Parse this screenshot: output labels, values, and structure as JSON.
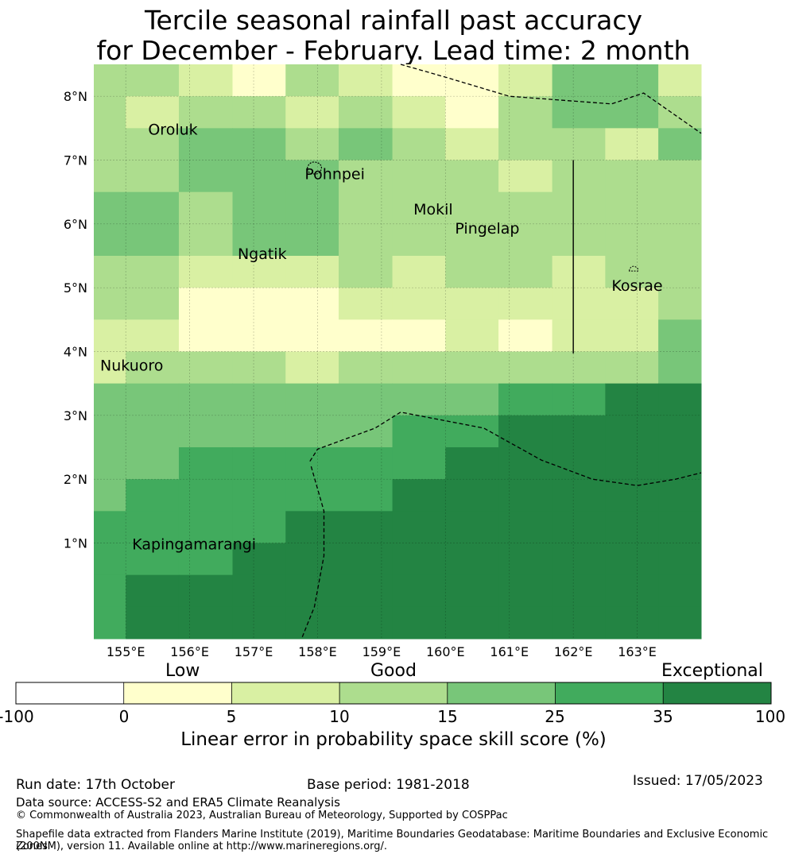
{
  "title": {
    "line1": "Tercile seasonal rainfall past accuracy",
    "line2": "for December - February. Lead time: 2 month"
  },
  "chart_data": {
    "type": "heatmap",
    "description_metric": "Linear error in probability space skill score (%)",
    "lon_edges": [
      154.5,
      155.0,
      155.83,
      156.67,
      157.5,
      158.33,
      159.17,
      160.0,
      160.83,
      161.67,
      162.5,
      163.33,
      164.0
    ],
    "lat_edges": [
      8.5,
      8.0,
      7.5,
      7.0,
      6.5,
      5.5,
      5.0,
      4.5,
      4.0,
      3.5,
      3.0,
      2.5,
      2.0,
      1.5,
      1.0,
      0.5,
      0.0,
      -0.5
    ],
    "class_grid": [
      [
        3,
        3,
        2,
        1,
        3,
        2,
        1,
        1,
        2,
        4,
        4,
        2
      ],
      [
        3,
        2,
        3,
        3,
        2,
        3,
        2,
        1,
        3,
        4,
        4,
        3
      ],
      [
        3,
        3,
        4,
        4,
        3,
        4,
        3,
        2,
        3,
        3,
        2,
        4
      ],
      [
        3,
        3,
        4,
        4,
        4,
        3,
        3,
        3,
        2,
        3,
        3,
        3
      ],
      [
        4,
        4,
        3,
        4,
        4,
        3,
        3,
        3,
        3,
        3,
        3,
        3
      ],
      [
        3,
        3,
        2,
        2,
        2,
        3,
        2,
        3,
        3,
        2,
        3,
        3
      ],
      [
        3,
        3,
        1,
        1,
        1,
        2,
        2,
        2,
        2,
        2,
        2,
        3
      ],
      [
        2,
        2,
        1,
        1,
        1,
        1,
        1,
        2,
        1,
        2,
        2,
        4
      ],
      [
        2,
        3,
        3,
        3,
        2,
        3,
        3,
        3,
        3,
        3,
        3,
        4
      ],
      [
        4,
        4,
        4,
        4,
        4,
        4,
        4,
        4,
        5,
        5,
        6,
        6
      ],
      [
        4,
        4,
        4,
        4,
        4,
        4,
        5,
        5,
        6,
        6,
        6,
        6
      ],
      [
        4,
        4,
        5,
        5,
        5,
        5,
        5,
        6,
        6,
        6,
        6,
        6
      ],
      [
        4,
        5,
        5,
        5,
        5,
        5,
        6,
        6,
        6,
        6,
        6,
        6
      ],
      [
        5,
        5,
        5,
        5,
        6,
        6,
        6,
        6,
        6,
        6,
        6,
        6
      ],
      [
        5,
        5,
        5,
        6,
        6,
        6,
        6,
        6,
        6,
        6,
        6,
        6
      ],
      [
        5,
        6,
        6,
        6,
        6,
        6,
        6,
        6,
        6,
        6,
        6,
        6
      ],
      [
        5,
        6,
        6,
        6,
        6,
        6,
        6,
        6,
        6,
        6,
        6,
        6
      ]
    ],
    "x_ticks": [
      {
        "value": 155,
        "label": "155°E"
      },
      {
        "value": 156,
        "label": "156°E"
      },
      {
        "value": 157,
        "label": "157°E"
      },
      {
        "value": 158,
        "label": "158°E"
      },
      {
        "value": 159,
        "label": "159°E"
      },
      {
        "value": 160,
        "label": "160°E"
      },
      {
        "value": 161,
        "label": "161°E"
      },
      {
        "value": 162,
        "label": "162°E"
      },
      {
        "value": 163,
        "label": "163°E"
      }
    ],
    "y_ticks": [
      {
        "value": 8,
        "label": "8°N"
      },
      {
        "value": 7,
        "label": "7°N"
      },
      {
        "value": 6,
        "label": "6°N"
      },
      {
        "value": 5,
        "label": "5°N"
      },
      {
        "value": 4,
        "label": "4°N"
      },
      {
        "value": 3,
        "label": "3°N"
      },
      {
        "value": 2,
        "label": "2°N"
      },
      {
        "value": 1,
        "label": "1°N"
      }
    ],
    "places": [
      {
        "name": "Oroluk",
        "lon": 155.35,
        "lat": 7.4
      },
      {
        "name": "Pohnpei",
        "lon": 157.8,
        "lat": 6.7
      },
      {
        "name": "Mokil",
        "lon": 159.5,
        "lat": 6.15
      },
      {
        "name": "Pingelap",
        "lon": 160.15,
        "lat": 5.85
      },
      {
        "name": "Ngatik",
        "lon": 156.75,
        "lat": 5.45
      },
      {
        "name": "Kosrae",
        "lon": 162.6,
        "lat": 4.95
      },
      {
        "name": "Nukuoro",
        "lon": 154.6,
        "lat": 3.7
      },
      {
        "name": "Kapingamarangi",
        "lon": 155.1,
        "lat": 0.9
      }
    ],
    "eez_boundary_lines": [
      [
        [
          159.3,
          8.5
        ],
        [
          160.0,
          8.3
        ],
        [
          161.0,
          8.0
        ],
        [
          162.6,
          7.88
        ],
        [
          163.1,
          8.05
        ],
        [
          164.0,
          7.42
        ]
      ],
      [
        [
          157.88,
          2.28
        ],
        [
          158.0,
          2.47
        ],
        [
          158.9,
          2.8
        ],
        [
          159.3,
          3.05
        ],
        [
          160.6,
          2.8
        ],
        [
          161.5,
          2.3
        ],
        [
          162.3,
          2.0
        ],
        [
          163.0,
          1.9
        ],
        [
          163.6,
          2.0
        ],
        [
          164.0,
          2.1
        ]
      ],
      [
        [
          157.9,
          2.2
        ],
        [
          158.1,
          1.5
        ],
        [
          158.1,
          0.8
        ],
        [
          157.95,
          0.0
        ],
        [
          157.75,
          -0.5
        ]
      ]
    ],
    "solid_line": [
      [
        162.0,
        7.0
      ],
      [
        162.0,
        3.97
      ]
    ],
    "xlim": [
      154.5,
      164.0
    ],
    "ylim": [
      -0.5,
      8.5
    ]
  },
  "colorbar": {
    "categories": [
      {
        "label": "Low"
      },
      {
        "label": "Good"
      },
      {
        "label": "Exceptional"
      }
    ],
    "ticks": [
      "-100",
      "0",
      "5",
      "10",
      "15",
      "25",
      "35",
      "100"
    ],
    "colors": [
      "#ffffff",
      "#ffffcc",
      "#d9f0a3",
      "#addd8e",
      "#78c679",
      "#41ab5d",
      "#238443"
    ],
    "title": "Linear error in probability space skill score (%)"
  },
  "footer": {
    "run_date": "Run date: 17th October",
    "base_period": "Base period: 1981-2018",
    "issued": "Issued: 17/05/2023",
    "data_source": "Data source: ACCESS-S2 and ERA5 Climate Reanalysis",
    "copyright": "© Commonwealth of Australia 2023, Australian Bureau of Meteorology, Supported by COSPPac",
    "shapefile_line1": "Shapefile data extracted from Flanders Marine Institute (2019), Maritime Boundaries Geodatabase: Maritime Boundaries and Exclusive Economic Zones",
    "shapefile_line2": "(200NM), version 11. Available online at http://www.marineregions.org/."
  }
}
